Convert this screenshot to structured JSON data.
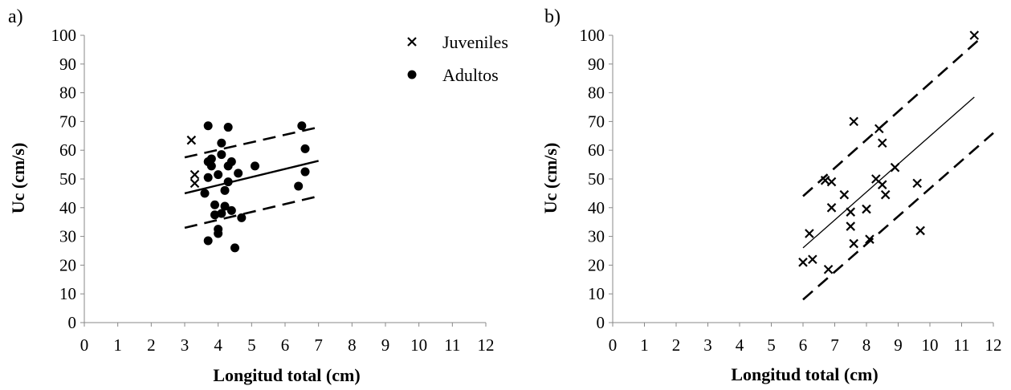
{
  "chart_data": [
    {
      "type": "scatter",
      "panel_label": "a)",
      "xlabel": "Longitud total (cm)",
      "ylabel": "Uc (cm/s)",
      "xlim": [
        0,
        12
      ],
      "ylim": [
        0,
        100
      ],
      "xticks": [
        "0",
        "1",
        "2",
        "3",
        "4",
        "5",
        "6",
        "7",
        "8",
        "9",
        "10",
        "11",
        "12"
      ],
      "yticks": [
        "0",
        "10",
        "20",
        "30",
        "40",
        "50",
        "60",
        "70",
        "80",
        "90",
        "100"
      ],
      "grid": false,
      "legend_position": "top-right",
      "series": [
        {
          "name": "Juveniles",
          "marker": "x",
          "points": [
            [
              3.2,
              63.5
            ],
            [
              3.3,
              51.5
            ],
            [
              3.3,
              48.5
            ]
          ]
        },
        {
          "name": "Adultos",
          "marker": "circle",
          "points": [
            [
              3.6,
              45
            ],
            [
              3.7,
              68.5
            ],
            [
              3.7,
              56
            ],
            [
              3.7,
              50.5
            ],
            [
              3.7,
              28.5
            ],
            [
              3.8,
              57
            ],
            [
              3.8,
              54.5
            ],
            [
              3.9,
              41
            ],
            [
              3.9,
              37.5
            ],
            [
              4.0,
              51.5
            ],
            [
              4.0,
              32.5
            ],
            [
              4.0,
              31
            ],
            [
              4.1,
              62.5
            ],
            [
              4.1,
              58.5
            ],
            [
              4.1,
              38
            ],
            [
              4.2,
              46
            ],
            [
              4.2,
              40.5
            ],
            [
              4.3,
              68
            ],
            [
              4.3,
              54.5
            ],
            [
              4.3,
              49
            ],
            [
              4.4,
              56
            ],
            [
              4.4,
              39
            ],
            [
              4.5,
              26
            ],
            [
              4.6,
              52
            ],
            [
              4.7,
              36.5
            ],
            [
              5.1,
              54.5
            ],
            [
              6.4,
              47.5
            ],
            [
              6.5,
              68.5
            ],
            [
              6.6,
              60.5
            ],
            [
              6.6,
              52.5
            ]
          ]
        }
      ],
      "lines": [
        {
          "style": "solid",
          "x": [
            3,
            7
          ],
          "y": [
            45,
            56.3
          ]
        },
        {
          "style": "dashed",
          "x": [
            3,
            7
          ],
          "y": [
            57.5,
            68
          ]
        },
        {
          "style": "dashed",
          "x": [
            3,
            7
          ],
          "y": [
            33,
            44
          ]
        }
      ]
    },
    {
      "type": "scatter",
      "panel_label": "b)",
      "xlabel": "Longitud total (cm)",
      "ylabel": "Uc (cm/s)",
      "xlim": [
        0,
        12
      ],
      "ylim": [
        0,
        100
      ],
      "xticks": [
        "0",
        "1",
        "2",
        "3",
        "4",
        "5",
        "6",
        "7",
        "8",
        "9",
        "10",
        "11",
        "12"
      ],
      "yticks": [
        "0",
        "10",
        "20",
        "30",
        "40",
        "50",
        "60",
        "70",
        "80",
        "90",
        "100"
      ],
      "grid": false,
      "series": [
        {
          "marker": "x",
          "points": [
            [
              6.0,
              21
            ],
            [
              6.2,
              31
            ],
            [
              6.3,
              22
            ],
            [
              6.7,
              49.5
            ],
            [
              6.8,
              18.5
            ],
            [
              6.9,
              49
            ],
            [
              6.9,
              40
            ],
            [
              7.3,
              44.5
            ],
            [
              7.5,
              38.5
            ],
            [
              7.5,
              33.5
            ],
            [
              7.6,
              70
            ],
            [
              7.6,
              27.5
            ],
            [
              8.0,
              39.5
            ],
            [
              8.1,
              29
            ],
            [
              8.3,
              50
            ],
            [
              8.4,
              67.5
            ],
            [
              8.5,
              62.5
            ],
            [
              8.5,
              48
            ],
            [
              8.6,
              44.5
            ],
            [
              8.9,
              54
            ],
            [
              9.6,
              48.5
            ],
            [
              9.7,
              32
            ],
            [
              11.4,
              100
            ]
          ]
        }
      ],
      "lines": [
        {
          "style": "solid",
          "x": [
            6,
            11.4
          ],
          "y": [
            26,
            78.5
          ]
        },
        {
          "style": "dashed",
          "x": [
            6,
            11.6
          ],
          "y": [
            44,
            99
          ]
        },
        {
          "style": "dashed",
          "x": [
            6,
            12
          ],
          "y": [
            8,
            66
          ]
        }
      ]
    }
  ]
}
